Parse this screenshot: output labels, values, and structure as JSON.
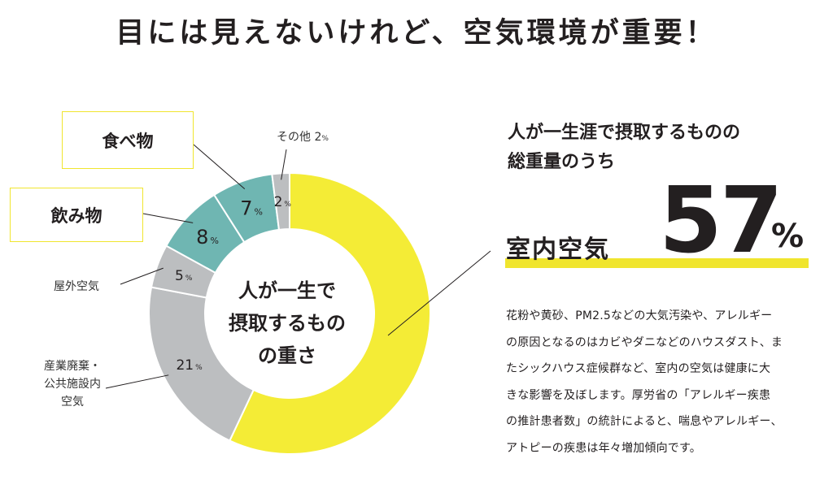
{
  "headline": "目には見えないけれど、空気環境が重要！",
  "chart_data": {
    "type": "pie",
    "variant": "donut",
    "title": "人が一生で摂取するものの重さ",
    "unit": "%",
    "slices": [
      {
        "name": "室内空気",
        "value": 57,
        "color": "#f4ec36",
        "label_shown": ""
      },
      {
        "name": "産業廃棄・公共施設内空気",
        "value": 21,
        "color": "#bcbec0",
        "label_shown": "21"
      },
      {
        "name": "屋外空気",
        "value": 5,
        "color": "#bcbec0",
        "label_shown": "5"
      },
      {
        "name": "飲み物",
        "value": 8,
        "color": "#6fb6b2",
        "label_shown": "8"
      },
      {
        "name": "食べ物",
        "value": 7,
        "color": "#6fb6b2",
        "label_shown": "7"
      },
      {
        "name": "その他",
        "value": 2,
        "color": "#bcbec0",
        "label_shown": "2"
      }
    ]
  },
  "labels": {
    "food": "食べ物",
    "drink": "飲み物",
    "other": "その他 2",
    "other_unit": "%",
    "outdoor_air": "屋外空気",
    "waste_line1": "産業廃棄・",
    "waste_line2": "公共施設内",
    "waste_line3": "空気"
  },
  "center_text": {
    "line1": "人が一生で",
    "line2": "摂取するもの",
    "line3": "の重さ"
  },
  "highlight": {
    "heading_line1": "人が一生涯で摂取するものの",
    "heading_line2": "総重量のうち",
    "label": "室内空気",
    "value": "57",
    "unit": "%"
  },
  "body_lines": [
    "花粉や黄砂、PM2.5などの大気汚染や、アレルギー",
    "の原因となるのはカビやダニなどのハウスダスト、ま",
    "たシックハウス症候群など、室内の空気は健康に大",
    "きな影響を及ぼします。厚労省の「アレルギー疾患",
    "の推計患者数」の統計によると、喘息やアレルギー、",
    "アトピーの疾患は年々増加傾向です。"
  ],
  "colors": {
    "accent_yellow": "#f4ec36",
    "teal": "#6fb6b2",
    "gray": "#bcbec0",
    "text": "#231f20"
  }
}
